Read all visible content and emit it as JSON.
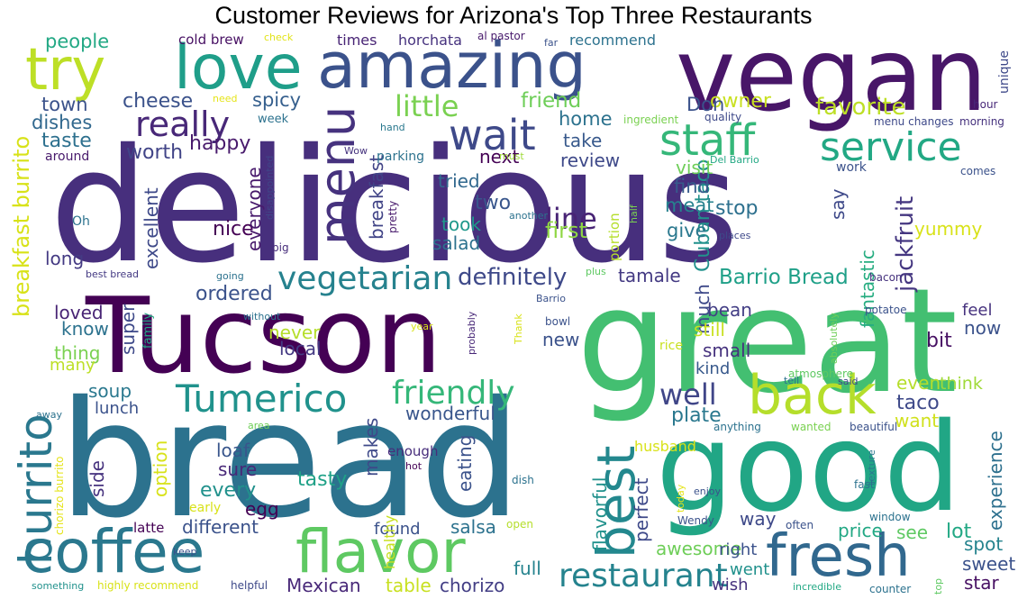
{
  "title": "Customer Reviews for Arizona's Top Three Restaurants",
  "words": [
    {
      "text": "delicious",
      "color": "#472f7d"
    },
    {
      "text": "bread",
      "color": "#2c728e"
    },
    {
      "text": "great",
      "color": "#43bf71"
    },
    {
      "text": "Tucson",
      "color": "#440154"
    },
    {
      "text": "good",
      "color": "#21a685"
    },
    {
      "text": "vegan",
      "color": "#481668"
    },
    {
      "text": "amazing",
      "color": "#3b528b"
    },
    {
      "text": "love",
      "color": "#1f9e89"
    },
    {
      "text": "try",
      "color": "#bddf26"
    },
    {
      "text": "coffee",
      "color": "#2a788e"
    },
    {
      "text": "flavor",
      "color": "#5ec962"
    },
    {
      "text": "fresh",
      "color": "#31688e"
    },
    {
      "text": "back",
      "color": "#b5de2b"
    },
    {
      "text": "menu",
      "color": "#46327e"
    },
    {
      "text": "best",
      "color": "#23888e"
    },
    {
      "text": "staff",
      "color": "#35b779"
    },
    {
      "text": "service",
      "color": "#22a884"
    },
    {
      "text": "wait",
      "color": "#3e4989"
    },
    {
      "text": "really",
      "color": "#482878"
    },
    {
      "text": "burrito",
      "color": "#2a788e"
    },
    {
      "text": "Tumerico",
      "color": "#20928c"
    },
    {
      "text": "friendly",
      "color": "#35b779"
    },
    {
      "text": "restaurant",
      "color": "#25838e"
    },
    {
      "text": "vegetarian",
      "color": "#26828e"
    },
    {
      "text": "little",
      "color": "#7ad151"
    },
    {
      "text": "line",
      "color": "#482475"
    },
    {
      "text": "well",
      "color": "#404688"
    },
    {
      "text": "favorite",
      "color": "#bddf26"
    },
    {
      "text": "definitely",
      "color": "#3e4989"
    },
    {
      "text": "breakfast burrito",
      "color": "#d8e219"
    },
    {
      "text": "jackfruit",
      "color": "#453781"
    },
    {
      "text": "Barrio Bread",
      "color": "#1fa088"
    },
    {
      "text": "Cuban taco",
      "color": "#21918c"
    },
    {
      "text": "friend",
      "color": "#6ece58"
    },
    {
      "text": "cheese",
      "color": "#3b528b"
    },
    {
      "text": "people",
      "color": "#22a884"
    },
    {
      "text": "spicy",
      "color": "#355f8d"
    },
    {
      "text": "taste",
      "color": "#2d708e"
    },
    {
      "text": "dishes",
      "color": "#31688e"
    },
    {
      "text": "town",
      "color": "#3b528b"
    },
    {
      "text": "happy",
      "color": "#481a6c"
    },
    {
      "text": "worth",
      "color": "#414487"
    },
    {
      "text": "owner",
      "color": "#c8e020"
    },
    {
      "text": "Don",
      "color": "#3b528b"
    },
    {
      "text": "home",
      "color": "#2c728e"
    },
    {
      "text": "take",
      "color": "#38598c"
    },
    {
      "text": "next",
      "color": "#440154"
    },
    {
      "text": "review",
      "color": "#3e4989"
    },
    {
      "text": "visit",
      "color": "#6ece58"
    },
    {
      "text": "find",
      "color": "#375a8c"
    },
    {
      "text": "meat",
      "color": "#26828e"
    },
    {
      "text": "give",
      "color": "#2a788e"
    },
    {
      "text": "stop",
      "color": "#2d708e"
    },
    {
      "text": "say",
      "color": "#3e4989"
    },
    {
      "text": "fantastic",
      "color": "#27ad81"
    },
    {
      "text": "yummy",
      "color": "#d8e219"
    },
    {
      "text": "first",
      "color": "#8fd744"
    },
    {
      "text": "took",
      "color": "#1f988b"
    },
    {
      "text": "salad",
      "color": "#2c728e"
    },
    {
      "text": "two",
      "color": "#39568c"
    },
    {
      "text": "tried",
      "color": "#31688e"
    },
    {
      "text": "breakfast",
      "color": "#414487"
    },
    {
      "text": "nice",
      "color": "#440154"
    },
    {
      "text": "excellent",
      "color": "#3e4989"
    },
    {
      "text": "everyone",
      "color": "#481a6c"
    },
    {
      "text": "long",
      "color": "#443a83"
    },
    {
      "text": "ordered",
      "color": "#3b528b"
    },
    {
      "text": "loved",
      "color": "#482475"
    },
    {
      "text": "know",
      "color": "#2c728e"
    },
    {
      "text": "thing",
      "color": "#7ad151"
    },
    {
      "text": "many",
      "color": "#bddf26"
    },
    {
      "text": "super",
      "color": "#3e4989"
    },
    {
      "text": "never",
      "color": "#b5de2b"
    },
    {
      "text": "local",
      "color": "#443a83"
    },
    {
      "text": "much",
      "color": "#3e4989"
    },
    {
      "text": "new",
      "color": "#3b528b"
    },
    {
      "text": "bean",
      "color": "#433e85"
    },
    {
      "text": "still",
      "color": "#c8e020"
    },
    {
      "text": "small",
      "color": "#46327e"
    },
    {
      "text": "kind",
      "color": "#38598c"
    },
    {
      "text": "bit",
      "color": "#471063"
    },
    {
      "text": "now",
      "color": "#3b528b"
    },
    {
      "text": "feel",
      "color": "#46327e"
    },
    {
      "text": "tamale",
      "color": "#443a83"
    },
    {
      "text": "even",
      "color": "#b5de2b"
    },
    {
      "text": "think",
      "color": "#a0da39"
    },
    {
      "text": "taco",
      "color": "#3e4989"
    },
    {
      "text": "want",
      "color": "#d0e11c"
    },
    {
      "text": "experience",
      "color": "#2d708e"
    },
    {
      "text": "soup",
      "color": "#2a788e"
    },
    {
      "text": "lunch",
      "color": "#3b528b"
    },
    {
      "text": "wonderful",
      "color": "#39568c"
    },
    {
      "text": "plate",
      "color": "#2a788e"
    },
    {
      "text": "makes",
      "color": "#3e4989"
    },
    {
      "text": "eating",
      "color": "#3b528b"
    },
    {
      "text": "enough",
      "color": "#472d7b"
    },
    {
      "text": "loaf",
      "color": "#39568c"
    },
    {
      "text": "sure",
      "color": "#482878"
    },
    {
      "text": "option",
      "color": "#d8e219"
    },
    {
      "text": "side",
      "color": "#46327e"
    },
    {
      "text": "every",
      "color": "#21918c"
    },
    {
      "text": "egg",
      "color": "#440154"
    },
    {
      "text": "tasty",
      "color": "#1fa187"
    },
    {
      "text": "different",
      "color": "#3b528b"
    },
    {
      "text": "salsa",
      "color": "#2c728e"
    },
    {
      "text": "found",
      "color": "#3b528b"
    },
    {
      "text": "latte",
      "color": "#440154"
    },
    {
      "text": "healthy",
      "color": "#c8e020"
    },
    {
      "text": "flavorful",
      "color": "#21918c"
    },
    {
      "text": "perfect",
      "color": "#3e4989"
    },
    {
      "text": "awesome",
      "color": "#6ece58"
    },
    {
      "text": "price",
      "color": "#22a884"
    },
    {
      "text": "see",
      "color": "#5ec962"
    },
    {
      "text": "lot",
      "color": "#22a884"
    },
    {
      "text": "way",
      "color": "#3e4989"
    },
    {
      "text": "spot",
      "color": "#25838e"
    },
    {
      "text": "right",
      "color": "#3b528b"
    },
    {
      "text": "went",
      "color": "#21918c"
    },
    {
      "text": "sweet",
      "color": "#3b528b"
    },
    {
      "text": "wish",
      "color": "#46327e"
    },
    {
      "text": "star",
      "color": "#471063"
    },
    {
      "text": "full",
      "color": "#25838e"
    },
    {
      "text": "Mexican",
      "color": "#482878"
    },
    {
      "text": "table",
      "color": "#c8e020"
    },
    {
      "text": "chorizo",
      "color": "#433e85"
    },
    {
      "text": "cold brew",
      "color": "#471063"
    },
    {
      "text": "check",
      "color": "#e1e318"
    },
    {
      "text": "times",
      "color": "#482475"
    },
    {
      "text": "horchata",
      "color": "#46327e"
    },
    {
      "text": "al pastor",
      "color": "#481a6c"
    },
    {
      "text": "far",
      "color": "#3b528b"
    },
    {
      "text": "recommend",
      "color": "#2c728e"
    },
    {
      "text": "hour",
      "color": "#482878"
    },
    {
      "text": "unique",
      "color": "#3e4989"
    },
    {
      "text": "need",
      "color": "#e5e419"
    },
    {
      "text": "week",
      "color": "#2c728e"
    },
    {
      "text": "hand",
      "color": "#2a788e"
    },
    {
      "text": "ingredient",
      "color": "#7ad151"
    },
    {
      "text": "quality",
      "color": "#3e4989"
    },
    {
      "text": "menu changes",
      "color": "#3e4989"
    },
    {
      "text": "morning",
      "color": "#46327e"
    },
    {
      "text": "around",
      "color": "#481a6c"
    },
    {
      "text": "disappointed",
      "color": "#404688"
    },
    {
      "text": "Wow",
      "color": "#46337e"
    },
    {
      "text": "must",
      "color": "#a0da39"
    },
    {
      "text": "Del Barrio",
      "color": "#22a884"
    },
    {
      "text": "parking",
      "color": "#2c728e"
    },
    {
      "text": "work",
      "color": "#3b528b"
    },
    {
      "text": "comes",
      "color": "#3b528b"
    },
    {
      "text": "another",
      "color": "#2c728e"
    },
    {
      "text": "half",
      "color": "#7ad151"
    },
    {
      "text": "portion",
      "color": "#b5de2b"
    },
    {
      "text": "pretty",
      "color": "#481a6c"
    },
    {
      "text": "big",
      "color": "#472d7b"
    },
    {
      "text": "Oh",
      "color": "#2c728e"
    },
    {
      "text": "places",
      "color": "#3e4989"
    },
    {
      "text": "best bread",
      "color": "#443a83"
    },
    {
      "text": "going",
      "color": "#2c728e"
    },
    {
      "text": "plus",
      "color": "#5ec962"
    },
    {
      "text": "without",
      "color": "#2c728e"
    },
    {
      "text": "Barrio",
      "color": "#3b528b"
    },
    {
      "text": "bacon",
      "color": "#46327e"
    },
    {
      "text": "bowl",
      "color": "#3b528b"
    },
    {
      "text": "potatoe",
      "color": "#3b528b"
    },
    {
      "text": "absolutely",
      "color": "#6ece58"
    },
    {
      "text": "year",
      "color": "#d8e219"
    },
    {
      "text": "probably",
      "color": "#482878"
    },
    {
      "text": "Thank",
      "color": "#d8e219"
    },
    {
      "text": "family",
      "color": "#22a884"
    },
    {
      "text": "rice",
      "color": "#c8e020"
    },
    {
      "text": "atmosphere",
      "color": "#5ec962"
    },
    {
      "text": "tell",
      "color": "#2c728e"
    },
    {
      "text": "said",
      "color": "#3e4989"
    },
    {
      "text": "away",
      "color": "#2c728e"
    },
    {
      "text": "area",
      "color": "#6ece58"
    },
    {
      "text": "anything",
      "color": "#2c728e"
    },
    {
      "text": "wanted",
      "color": "#7ad151"
    },
    {
      "text": "beautiful",
      "color": "#3b528b"
    },
    {
      "text": "husband",
      "color": "#d8e219"
    },
    {
      "text": "texture",
      "color": "#2a788e"
    },
    {
      "text": "hot",
      "color": "#440154"
    },
    {
      "text": "dish",
      "color": "#2c728e"
    },
    {
      "text": "chorizo burrito",
      "color": "#e5e419"
    },
    {
      "text": "early",
      "color": "#d8e219"
    },
    {
      "text": "today",
      "color": "#e5e419"
    },
    {
      "text": "enjoy",
      "color": "#3b528b"
    },
    {
      "text": "fast",
      "color": "#2c728e"
    },
    {
      "text": "Wendy",
      "color": "#3b528b"
    },
    {
      "text": "window",
      "color": "#2c728e"
    },
    {
      "text": "open",
      "color": "#b5de2b"
    },
    {
      "text": "often",
      "color": "#3b528b"
    },
    {
      "text": "keep",
      "color": "#3b528b"
    },
    {
      "text": "counter",
      "color": "#2c728e"
    },
    {
      "text": "top",
      "color": "#5ec962"
    },
    {
      "text": "something",
      "color": "#21918c"
    },
    {
      "text": "highly recommend",
      "color": "#d8e219"
    },
    {
      "text": "helpful",
      "color": "#3e4989"
    },
    {
      "text": "incredible",
      "color": "#22a884"
    }
  ]
}
